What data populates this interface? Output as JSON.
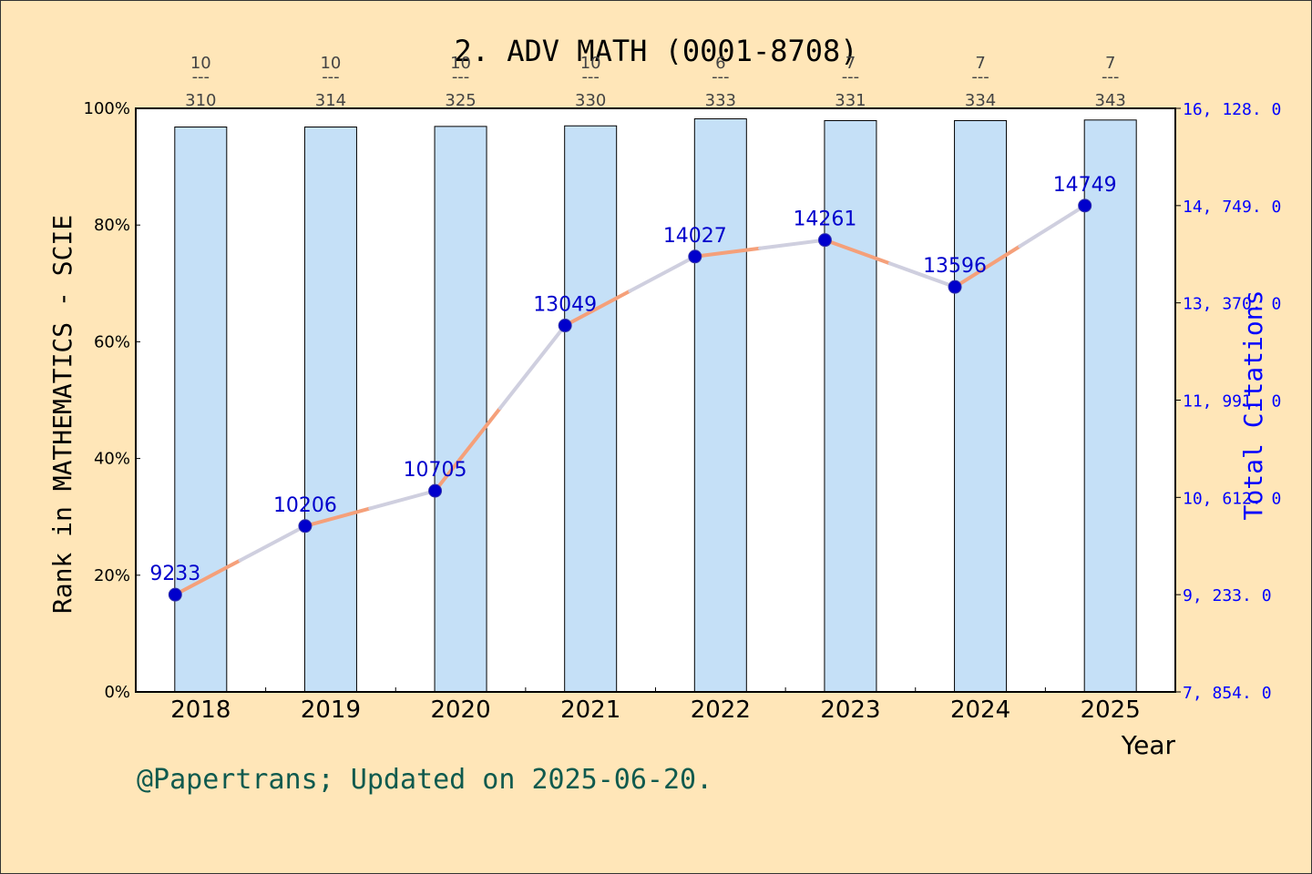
{
  "chart_data": {
    "type": "bar",
    "title": "2. ADV MATH (0001-8708)",
    "xlabel": "Year",
    "ylabel": "Rank in MATHEMATICS - SCIE",
    "y2label": "Total Citations",
    "categories": [
      "2018",
      "2019",
      "2020",
      "2021",
      "2022",
      "2023",
      "2024",
      "2025"
    ],
    "ylim": [
      0,
      100
    ],
    "yticks": [
      "0%",
      "20%",
      "40%",
      "60%",
      "80%",
      "100%"
    ],
    "y2lim": [
      7854.0,
      16128.0
    ],
    "y2ticks": [
      "7, 854. 0",
      "9, 233. 0",
      "10, 612. 0",
      "11, 991. 0",
      "13, 370. 0",
      "14, 749. 0",
      "16, 128. 0"
    ],
    "series": [
      {
        "type": "bar",
        "values": [
          96.8,
          96.8,
          96.9,
          97.0,
          98.2,
          97.9,
          97.9,
          98.0
        ],
        "color": "#C5E0F7"
      },
      {
        "name": "Total Citations",
        "type": "line",
        "axis": "right",
        "values": [
          9233,
          10206,
          10705,
          13049,
          14027,
          14261,
          13596,
          14749
        ],
        "labels": [
          "9233",
          "10206",
          "10705",
          "13049",
          "14027",
          "14261",
          "13596",
          "14749"
        ],
        "color": "#F5A07A",
        "marker_color": "#0000CC"
      }
    ],
    "rank_labels": [
      {
        "rank": "10",
        "sep": "---",
        "total": "310"
      },
      {
        "rank": "10",
        "sep": "---",
        "total": "314"
      },
      {
        "rank": "10",
        "sep": "---",
        "total": "325"
      },
      {
        "rank": "10",
        "sep": "---",
        "total": "330"
      },
      {
        "rank": "6",
        "sep": "---",
        "total": "333"
      },
      {
        "rank": "7",
        "sep": "---",
        "total": "331"
      },
      {
        "rank": "7",
        "sep": "---",
        "total": "334"
      },
      {
        "rank": "7",
        "sep": "---",
        "total": "343"
      }
    ],
    "grid": false,
    "legend": "none"
  },
  "footer": "@Papertrans; Updated on 2025-06-20."
}
